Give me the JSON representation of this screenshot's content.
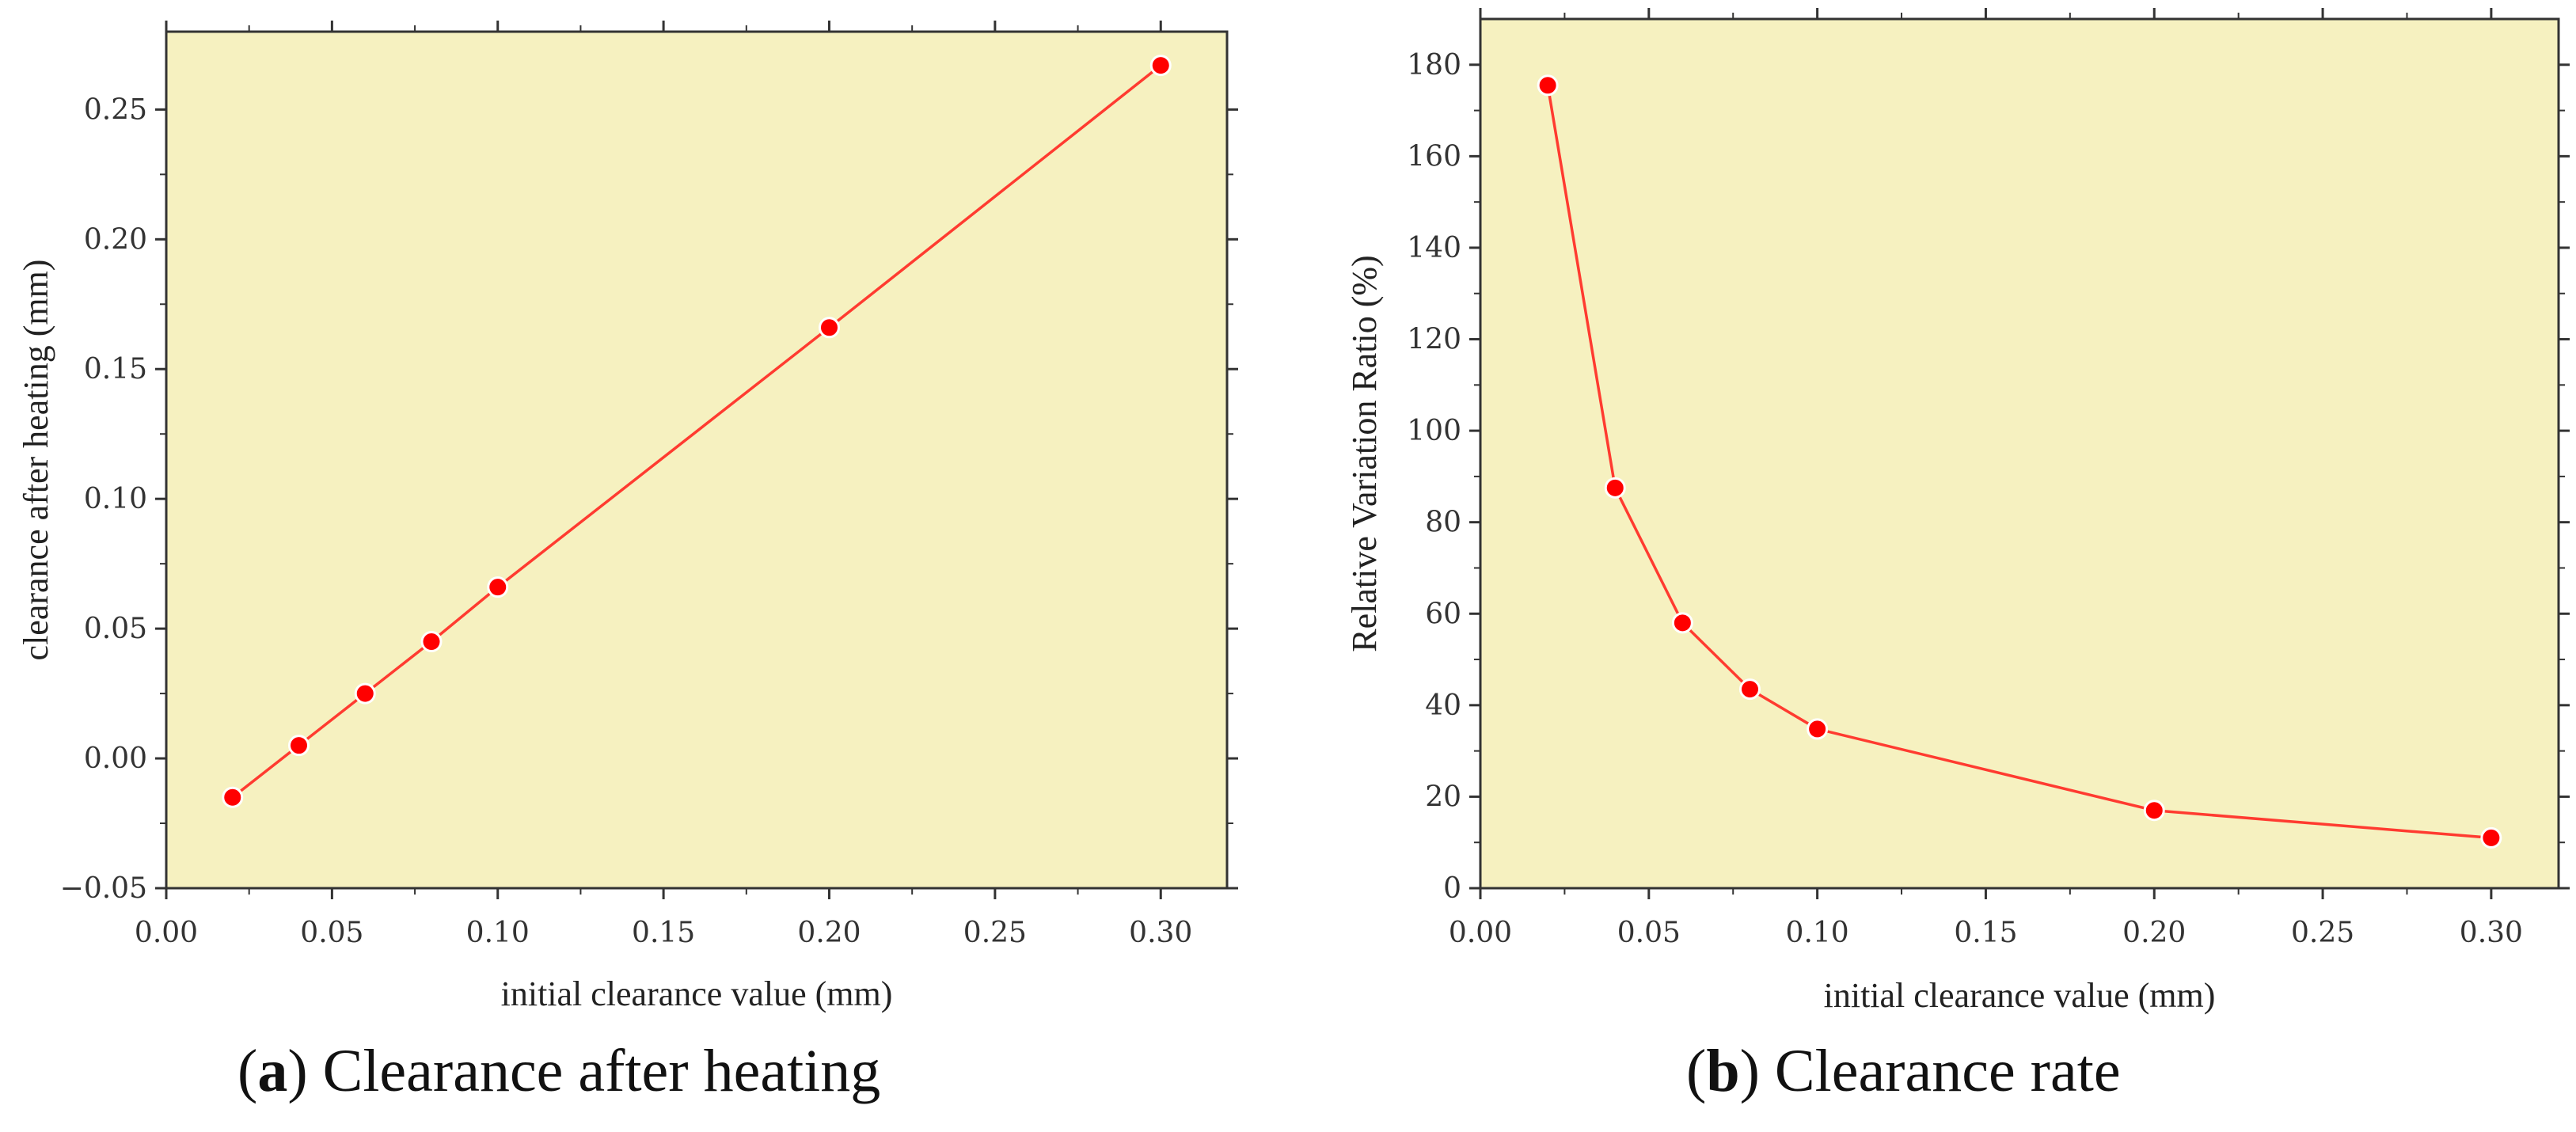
{
  "colors": {
    "plot_bg": "#f6f1c0",
    "series": "#ff3b30",
    "marker": "#ff0000",
    "axis": "#333333"
  },
  "chart_data": [
    {
      "type": "line",
      "title": "",
      "xlabel": "initial clearance value (mm)",
      "ylabel": "clearance after heating (mm)",
      "x": [
        0.02,
        0.04,
        0.06,
        0.08,
        0.1,
        0.2,
        0.3
      ],
      "series": [
        {
          "name": "clearance after heating",
          "values": [
            -0.015,
            0.005,
            0.025,
            0.045,
            0.066,
            0.166,
            0.267
          ]
        }
      ],
      "xlim": [
        0.0,
        0.32
      ],
      "ylim": [
        -0.05,
        0.28
      ],
      "xticks": [
        0.0,
        0.05,
        0.1,
        0.15,
        0.2,
        0.25,
        0.3
      ],
      "xtick_labels": [
        "0.00",
        "0.05",
        "0.10",
        "0.15",
        "0.20",
        "0.25",
        "0.30"
      ],
      "yticks": [
        -0.05,
        0.0,
        0.05,
        0.1,
        0.15,
        0.2,
        0.25
      ],
      "ytick_labels": [
        "−0.05",
        "0.00",
        "0.05",
        "0.10",
        "0.15",
        "0.20",
        "0.25"
      ],
      "grid": false,
      "caption_label": "a",
      "caption_text": "Clearance after heating"
    },
    {
      "type": "line",
      "title": "",
      "xlabel": "initial clearance value (mm)",
      "ylabel": "Relative Variation Ratio (%)",
      "x": [
        0.02,
        0.04,
        0.06,
        0.08,
        0.1,
        0.2,
        0.3
      ],
      "series": [
        {
          "name": "relative variation ratio",
          "values": [
            175.5,
            87.5,
            58,
            43.5,
            34.8,
            17,
            11
          ]
        }
      ],
      "xlim": [
        0.0,
        0.32
      ],
      "ylim": [
        0,
        190
      ],
      "xticks": [
        0.0,
        0.05,
        0.1,
        0.15,
        0.2,
        0.25,
        0.3
      ],
      "xtick_labels": [
        "0.00",
        "0.05",
        "0.10",
        "0.15",
        "0.20",
        "0.25",
        "0.30"
      ],
      "yticks": [
        0,
        20,
        40,
        60,
        80,
        100,
        120,
        140,
        160,
        180
      ],
      "ytick_labels": [
        "0",
        "20",
        "40",
        "60",
        "80",
        "100",
        "120",
        "140",
        "160",
        "180"
      ],
      "grid": false,
      "caption_label": "b",
      "caption_text": "Clearance rate"
    }
  ]
}
